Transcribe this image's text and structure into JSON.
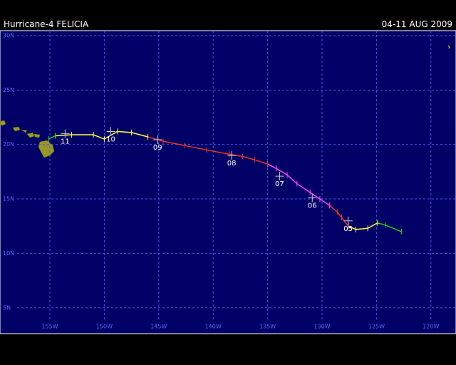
{
  "header": {
    "title": "Hurricane-4 FELICIA",
    "date_range": "04-11 AUG 2009"
  },
  "map": {
    "lat_lines": [
      {
        "value": 30,
        "label": "30N"
      },
      {
        "value": 25,
        "label": "25N"
      },
      {
        "value": 20,
        "label": "20N"
      },
      {
        "value": 15,
        "label": "15N"
      },
      {
        "value": 10,
        "label": "10N"
      },
      {
        "value": 5,
        "label": "5N"
      }
    ],
    "lon_lines": [
      {
        "value": 155,
        "label": "155W"
      },
      {
        "value": 150,
        "label": "150W"
      },
      {
        "value": 145,
        "label": "145W"
      },
      {
        "value": 140,
        "label": "140W"
      },
      {
        "value": 135,
        "label": "135W"
      },
      {
        "value": 130,
        "label": "130W"
      },
      {
        "value": 125,
        "label": "125W"
      },
      {
        "value": 120,
        "label": "120W"
      }
    ],
    "track": [
      {
        "color": "#22cc22",
        "lon": [
          122.7,
          124.2,
          124.9
        ],
        "lat": [
          12.0,
          12.6,
          12.8
        ]
      },
      {
        "color": "#ffff44",
        "lon": [
          124.9,
          125.8,
          126.9,
          127.6
        ],
        "lat": [
          12.8,
          12.3,
          12.2,
          12.5
        ]
      },
      {
        "color": "#ee3322",
        "lon": [
          127.6,
          128.2,
          128.6,
          129.3
        ],
        "lat": [
          12.5,
          13.3,
          13.8,
          14.4
        ]
      },
      {
        "color": "#ff44ff",
        "lon": [
          129.3,
          130.2,
          131.1,
          132.3,
          133.2,
          134.2,
          135.0
        ],
        "lat": [
          14.4,
          15.0,
          15.6,
          16.4,
          17.2,
          17.8,
          18.2
        ]
      },
      {
        "color": "#ee3322",
        "lon": [
          135.0,
          136.2,
          137.3,
          138.5,
          140.6,
          142.6,
          144.6,
          146.0
        ],
        "lat": [
          18.2,
          18.6,
          18.9,
          19.1,
          19.5,
          19.9,
          20.3,
          20.7
        ]
      },
      {
        "color": "#ffff44",
        "lon": [
          146.0,
          147.5,
          148.8,
          150.0,
          151.0,
          153.0,
          154.5
        ],
        "lat": [
          20.7,
          21.1,
          21.2,
          20.5,
          20.9,
          20.9,
          20.8
        ]
      },
      {
        "color": "#22cc22",
        "lon": [
          154.5,
          155.1
        ],
        "lat": [
          20.8,
          20.5
        ]
      }
    ],
    "day_labels": [
      {
        "label": "05",
        "lon": 127.6,
        "lat": 12.4
      },
      {
        "label": "06",
        "lon": 130.9,
        "lat": 14.5
      },
      {
        "label": "07",
        "lon": 133.9,
        "lat": 16.5
      },
      {
        "label": "08",
        "lon": 138.3,
        "lat": 18.4
      },
      {
        "label": "09",
        "lon": 145.1,
        "lat": 19.85
      },
      {
        "label": "10",
        "lon": 149.4,
        "lat": 20.6
      },
      {
        "label": "11",
        "lon": 153.6,
        "lat": 20.4
      }
    ]
  }
}
